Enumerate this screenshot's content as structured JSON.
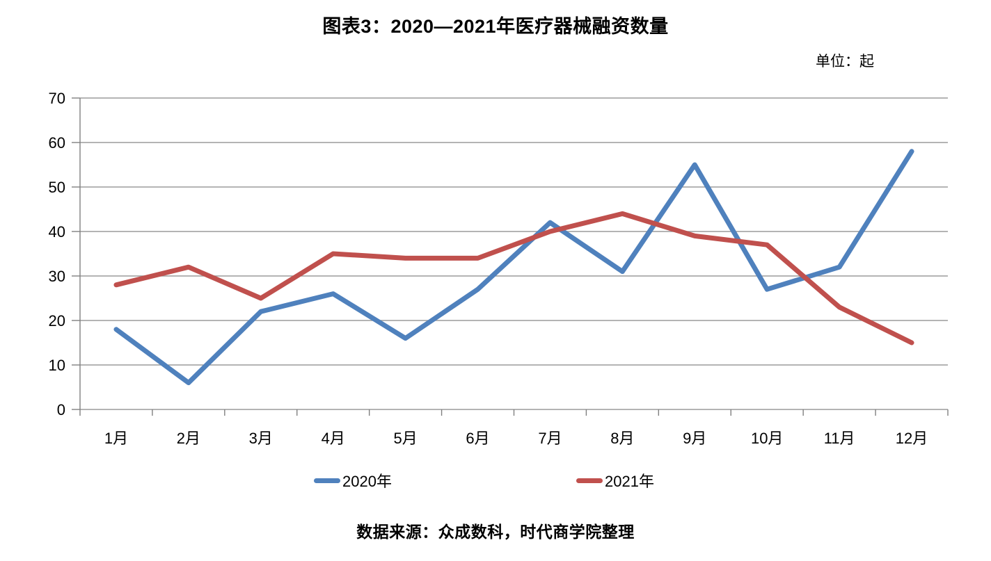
{
  "chart_data": {
    "type": "line",
    "title": "图表3：2020—2021年医疗器械融资数量",
    "unit_label": "单位：起",
    "source_note": "数据来源：众成数科，时代商学院整理",
    "categories": [
      "1月",
      "2月",
      "3月",
      "4月",
      "5月",
      "6月",
      "7月",
      "8月",
      "9月",
      "10月",
      "11月",
      "12月"
    ],
    "series": [
      {
        "name": "2020年",
        "color": "#4F81BD",
        "values": [
          18,
          6,
          22,
          26,
          16,
          27,
          42,
          31,
          55,
          27,
          32,
          58
        ]
      },
      {
        "name": "2021年",
        "color": "#C0504D",
        "values": [
          28,
          32,
          25,
          35,
          34,
          34,
          40,
          44,
          39,
          37,
          23,
          15
        ]
      }
    ],
    "xlabel": "",
    "ylabel": "",
    "ylim": [
      0,
      70
    ],
    "yticks": [
      0,
      10,
      20,
      30,
      40,
      50,
      60,
      70
    ],
    "grid": true,
    "legend_position": "bottom",
    "grid_color": "#9C9C9C",
    "axis_color": "#808080",
    "line_width": 7
  }
}
